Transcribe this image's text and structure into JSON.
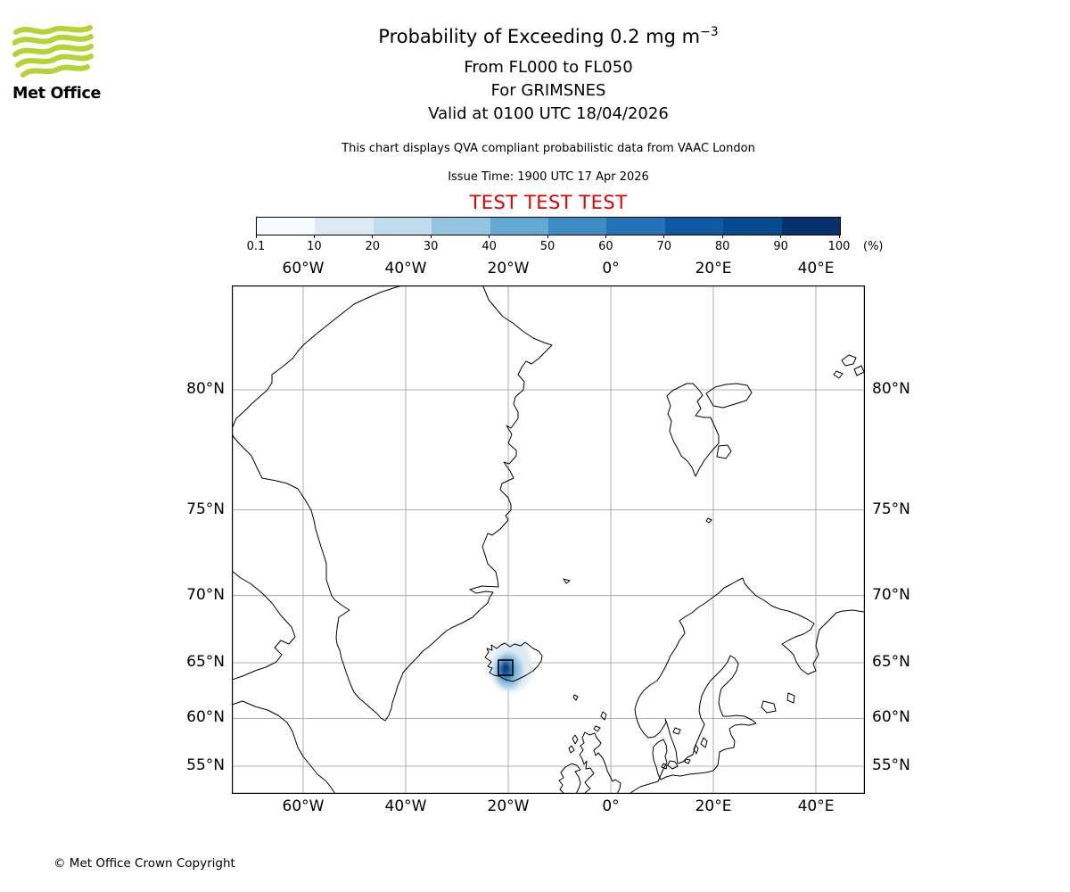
{
  "logo": {
    "brand": "Met Office"
  },
  "header": {
    "title_main": "Probability of Exceeding 0.2 mg m",
    "title_sup": "−3",
    "line_flight_levels": "From FL000 to FL050",
    "line_location": "For GRIMSNES",
    "line_valid": "Valid at 0100 UTC 18/04/2026",
    "qva_note": "This chart displays QVA compliant probabilistic data from VAAC London",
    "issue_time": "Issue Time: 1900 UTC 17 Apr 2026",
    "test_banner": "TEST TEST TEST",
    "test_banner_color": "#dd0000"
  },
  "colorbar": {
    "boundary_labels": [
      "0.1",
      "10",
      "20",
      "30",
      "40",
      "50",
      "60",
      "70",
      "80",
      "90",
      "100"
    ],
    "unit_label": "(%)",
    "segment_colors": [
      "#f7fbff",
      "#dceaf6",
      "#c0dcef",
      "#94c5df",
      "#64a9d3",
      "#3d8dc4",
      "#2272b5",
      "#0e59a2",
      "#084a8f",
      "#08306b"
    ]
  },
  "map": {
    "x_axis_labels": [
      "60°W",
      "40°W",
      "20°W",
      "0°",
      "20°E",
      "40°E"
    ],
    "y_axis_labels": [
      "80°N",
      "75°N",
      "70°N",
      "65°N",
      "60°N",
      "55°N"
    ],
    "grid_color": "#9a9a9a",
    "coastline_color": "#000000"
  },
  "footer": {
    "copyright": "© Met Office Crown Copyright"
  }
}
